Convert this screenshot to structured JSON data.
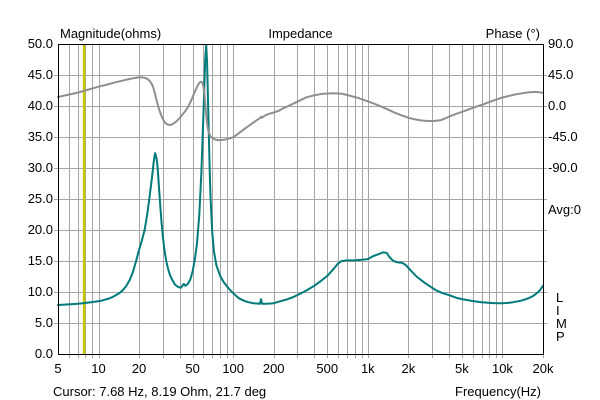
{
  "branding": {
    "vertical_text": "L\nI\nM\nP"
  },
  "status_bar": {
    "cursor_text": "Cursor: 7.68 Hz, 8.19 Ohm, 21.7 deg"
  },
  "chart_data": {
    "type": "line",
    "title": "Impedance",
    "grid": {
      "on": true,
      "color": "#a6a6a6",
      "border_color": "#000000",
      "background": "#ffffff"
    },
    "left_axis": {
      "label": "Magnitude(ohms)",
      "min": 0,
      "max": 50,
      "step": 5,
      "tick_labels": [
        "50.0",
        "45.0",
        "40.0",
        "35.0",
        "30.0",
        "25.0",
        "20.0",
        "15.0",
        "10.0",
        "5.0",
        "0.0"
      ]
    },
    "right_axis": {
      "label": "Phase (°)",
      "tick_labels": [
        "90.0",
        "45.0",
        "0.0",
        "-45.0",
        "-90.0"
      ],
      "deg_per_division": 45,
      "top_deg": 90,
      "avg_label": "Avg:0"
    },
    "x_axis": {
      "label": "Frequency(Hz)",
      "scale": "log",
      "min_hz": 5,
      "max_hz": 20000,
      "ticks": [
        {
          "hz": 5,
          "label": "5"
        },
        {
          "hz": 10,
          "label": "10"
        },
        {
          "hz": 20,
          "label": "20"
        },
        {
          "hz": 50,
          "label": "50"
        },
        {
          "hz": 100,
          "label": "100"
        },
        {
          "hz": 200,
          "label": "200"
        },
        {
          "hz": 500,
          "label": "500"
        },
        {
          "hz": 1000,
          "label": "1k"
        },
        {
          "hz": 2000,
          "label": "2k"
        },
        {
          "hz": 5000,
          "label": "5k"
        },
        {
          "hz": 10000,
          "label": "10k"
        },
        {
          "hz": 20000,
          "label": "20k"
        }
      ]
    },
    "cursor": {
      "hz": 7.68,
      "ohm": 8.19,
      "deg": 21.7,
      "color": "#c6c600"
    },
    "series": [
      {
        "name": "impedance-magnitude",
        "axis": "magnitude",
        "unit": "ohm",
        "color": "#007a7a",
        "points": [
          [
            5,
            7.9
          ],
          [
            6,
            8.0
          ],
          [
            7,
            8.1
          ],
          [
            7.68,
            8.19
          ],
          [
            8.5,
            8.3
          ],
          [
            9.5,
            8.45
          ],
          [
            10.5,
            8.6
          ],
          [
            12,
            8.95
          ],
          [
            13,
            9.3
          ],
          [
            14,
            9.7
          ],
          [
            15,
            10.2
          ],
          [
            16,
            10.9
          ],
          [
            17,
            11.9
          ],
          [
            18,
            13.2
          ],
          [
            19,
            15
          ],
          [
            20,
            16.8
          ],
          [
            21,
            18.3
          ],
          [
            22,
            20
          ],
          [
            23,
            22.5
          ],
          [
            24,
            25.5
          ],
          [
            25,
            28.6
          ],
          [
            25.7,
            31
          ],
          [
            26.3,
            32.4
          ],
          [
            27,
            31.5
          ],
          [
            27.5,
            30
          ],
          [
            28,
            27.5
          ],
          [
            28.6,
            24.5
          ],
          [
            29.3,
            21.5
          ],
          [
            30,
            19
          ],
          [
            31,
            16.5
          ],
          [
            32,
            14.8
          ],
          [
            33,
            13.6
          ],
          [
            34,
            12.7
          ],
          [
            35,
            12.1
          ],
          [
            37,
            11.2
          ],
          [
            39,
            10.8
          ],
          [
            41,
            10.7
          ],
          [
            43,
            11.3
          ],
          [
            44,
            11.0
          ],
          [
            46,
            11.3
          ],
          [
            48,
            12.0
          ],
          [
            50,
            13.3
          ],
          [
            52,
            15.3
          ],
          [
            54,
            18
          ],
          [
            56,
            22.5
          ],
          [
            58,
            29
          ],
          [
            60,
            38
          ],
          [
            61,
            43
          ],
          [
            62,
            47.5
          ],
          [
            63,
            49.8
          ],
          [
            64,
            47
          ],
          [
            65,
            41
          ],
          [
            66,
            35
          ],
          [
            67,
            29
          ],
          [
            68,
            25
          ],
          [
            70,
            19.5
          ],
          [
            72,
            16.5
          ],
          [
            75,
            14.3
          ],
          [
            80,
            12.6
          ],
          [
            85,
            11.6
          ],
          [
            90,
            10.9
          ],
          [
            95,
            10.3
          ],
          [
            100,
            9.8
          ],
          [
            110,
            9.0
          ],
          [
            120,
            8.6
          ],
          [
            130,
            8.35
          ],
          [
            140,
            8.2
          ],
          [
            150,
            8.15
          ],
          [
            158,
            8.1
          ],
          [
            161,
            8.85
          ],
          [
            164,
            8.1
          ],
          [
            175,
            8.1
          ],
          [
            190,
            8.15
          ],
          [
            200,
            8.2
          ],
          [
            220,
            8.45
          ],
          [
            250,
            8.8
          ],
          [
            280,
            9.2
          ],
          [
            320,
            9.8
          ],
          [
            360,
            10.4
          ],
          [
            400,
            11.0
          ],
          [
            450,
            11.8
          ],
          [
            500,
            12.6
          ],
          [
            550,
            13.6
          ],
          [
            600,
            14.6
          ],
          [
            640,
            15.0
          ],
          [
            700,
            15.1
          ],
          [
            800,
            15.1
          ],
          [
            900,
            15.2
          ],
          [
            1000,
            15.3
          ],
          [
            1100,
            15.8
          ],
          [
            1200,
            16.1
          ],
          [
            1300,
            16.4
          ],
          [
            1380,
            16.3
          ],
          [
            1450,
            15.6
          ],
          [
            1550,
            15.0
          ],
          [
            1650,
            14.8
          ],
          [
            1800,
            14.7
          ],
          [
            1900,
            14.4
          ],
          [
            2100,
            13.4
          ],
          [
            2300,
            12.5
          ],
          [
            2600,
            11.6
          ],
          [
            2900,
            10.9
          ],
          [
            3200,
            10.3
          ],
          [
            3600,
            9.8
          ],
          [
            4000,
            9.5
          ],
          [
            4500,
            9.1
          ],
          [
            5000,
            8.85
          ],
          [
            5500,
            8.7
          ],
          [
            6000,
            8.55
          ],
          [
            7000,
            8.35
          ],
          [
            8000,
            8.25
          ],
          [
            9000,
            8.2
          ],
          [
            10000,
            8.2
          ],
          [
            11000,
            8.25
          ],
          [
            12000,
            8.35
          ],
          [
            13000,
            8.5
          ],
          [
            14000,
            8.65
          ],
          [
            15000,
            8.85
          ],
          [
            16000,
            9.1
          ],
          [
            17000,
            9.4
          ],
          [
            18000,
            9.8
          ],
          [
            19000,
            10.3
          ],
          [
            20000,
            11.0
          ]
        ]
      },
      {
        "name": "phase",
        "axis": "phase",
        "unit": "deg",
        "color": "#8f8f8f",
        "points": [
          [
            5,
            13
          ],
          [
            6,
            16.5
          ],
          [
            7,
            19.5
          ],
          [
            7.68,
            21.7
          ],
          [
            9,
            25.5
          ],
          [
            10,
            28
          ],
          [
            11,
            30
          ],
          [
            12,
            32
          ],
          [
            13,
            33.8
          ],
          [
            14,
            35.3
          ],
          [
            15,
            36.7
          ],
          [
            16,
            38
          ],
          [
            17,
            39.2
          ],
          [
            18,
            40.2
          ],
          [
            19,
            41
          ],
          [
            20,
            41.5
          ],
          [
            21,
            41.7
          ],
          [
            22,
            41
          ],
          [
            23,
            39.5
          ],
          [
            24,
            36.5
          ],
          [
            25,
            31
          ],
          [
            25.7,
            25
          ],
          [
            26.3,
            17
          ],
          [
            27,
            8
          ],
          [
            28,
            -3
          ],
          [
            29,
            -12
          ],
          [
            30,
            -19
          ],
          [
            31,
            -23.5
          ],
          [
            32,
            -26
          ],
          [
            33,
            -27.3
          ],
          [
            34,
            -27.5
          ],
          [
            35,
            -26.8
          ],
          [
            36,
            -25.5
          ],
          [
            37,
            -23.8
          ],
          [
            38,
            -22
          ],
          [
            40,
            -17.5
          ],
          [
            42,
            -12.5
          ],
          [
            44,
            -7.5
          ],
          [
            46,
            -2
          ],
          [
            48,
            5
          ],
          [
            50,
            13
          ],
          [
            52,
            21
          ],
          [
            54,
            28
          ],
          [
            55,
            31
          ],
          [
            56,
            33.5
          ],
          [
            57,
            35
          ],
          [
            58,
            35.3
          ],
          [
            59,
            33.5
          ],
          [
            60,
            29
          ],
          [
            61,
            20
          ],
          [
            62,
            6
          ],
          [
            63,
            -12
          ],
          [
            64,
            -26
          ],
          [
            65,
            -34
          ],
          [
            66,
            -39
          ],
          [
            68,
            -44.5
          ],
          [
            70,
            -46.5
          ],
          [
            73,
            -48.5
          ],
          [
            76,
            -49.5
          ],
          [
            80,
            -49.5
          ],
          [
            85,
            -49
          ],
          [
            90,
            -48
          ],
          [
            95,
            -46.8
          ],
          [
            100,
            -45.3
          ],
          [
            105,
            -42.5
          ],
          [
            110,
            -39.5
          ],
          [
            120,
            -34
          ],
          [
            130,
            -29
          ],
          [
            140,
            -24.5
          ],
          [
            150,
            -20.5
          ],
          [
            158,
            -17.5
          ],
          [
            161,
            -15.5
          ],
          [
            164,
            -17
          ],
          [
            170,
            -14.5
          ],
          [
            180,
            -12
          ],
          [
            200,
            -9.5
          ],
          [
            220,
            -6.5
          ],
          [
            235,
            -3.3
          ],
          [
            260,
            0.5
          ],
          [
            300,
            6.2
          ],
          [
            350,
            12.6
          ],
          [
            400,
            15.5
          ],
          [
            450,
            17.4
          ],
          [
            500,
            18.2
          ],
          [
            550,
            18.5
          ],
          [
            600,
            18.2
          ],
          [
            650,
            17.5
          ],
          [
            700,
            16
          ],
          [
            750,
            14.5
          ],
          [
            800,
            13
          ],
          [
            850,
            11.5
          ],
          [
            900,
            9.8
          ],
          [
            1000,
            6.8
          ],
          [
            1100,
            3.8
          ],
          [
            1200,
            0.8
          ],
          [
            1300,
            -2
          ],
          [
            1400,
            -4.8
          ],
          [
            1500,
            -7.5
          ],
          [
            1600,
            -10
          ],
          [
            1800,
            -14
          ],
          [
            2000,
            -17
          ],
          [
            2200,
            -19
          ],
          [
            2500,
            -21
          ],
          [
            2800,
            -21.8
          ],
          [
            3100,
            -21.8
          ],
          [
            3500,
            -20.5
          ],
          [
            3800,
            -17.5
          ],
          [
            4000,
            -15.5
          ],
          [
            4500,
            -11.5
          ],
          [
            5000,
            -8.5
          ],
          [
            5700,
            -4.5
          ],
          [
            6500,
            -0.5
          ],
          [
            7200,
            2.5
          ],
          [
            8000,
            5.8
          ],
          [
            9000,
            9.3
          ],
          [
            10000,
            12.3
          ],
          [
            11300,
            14.8
          ],
          [
            12500,
            16.8
          ],
          [
            14000,
            18.5
          ],
          [
            15000,
            19.5
          ],
          [
            16000,
            20
          ],
          [
            17000,
            20.3
          ],
          [
            18000,
            20.3
          ],
          [
            19000,
            19.8
          ],
          [
            20000,
            19.3
          ]
        ]
      }
    ]
  }
}
